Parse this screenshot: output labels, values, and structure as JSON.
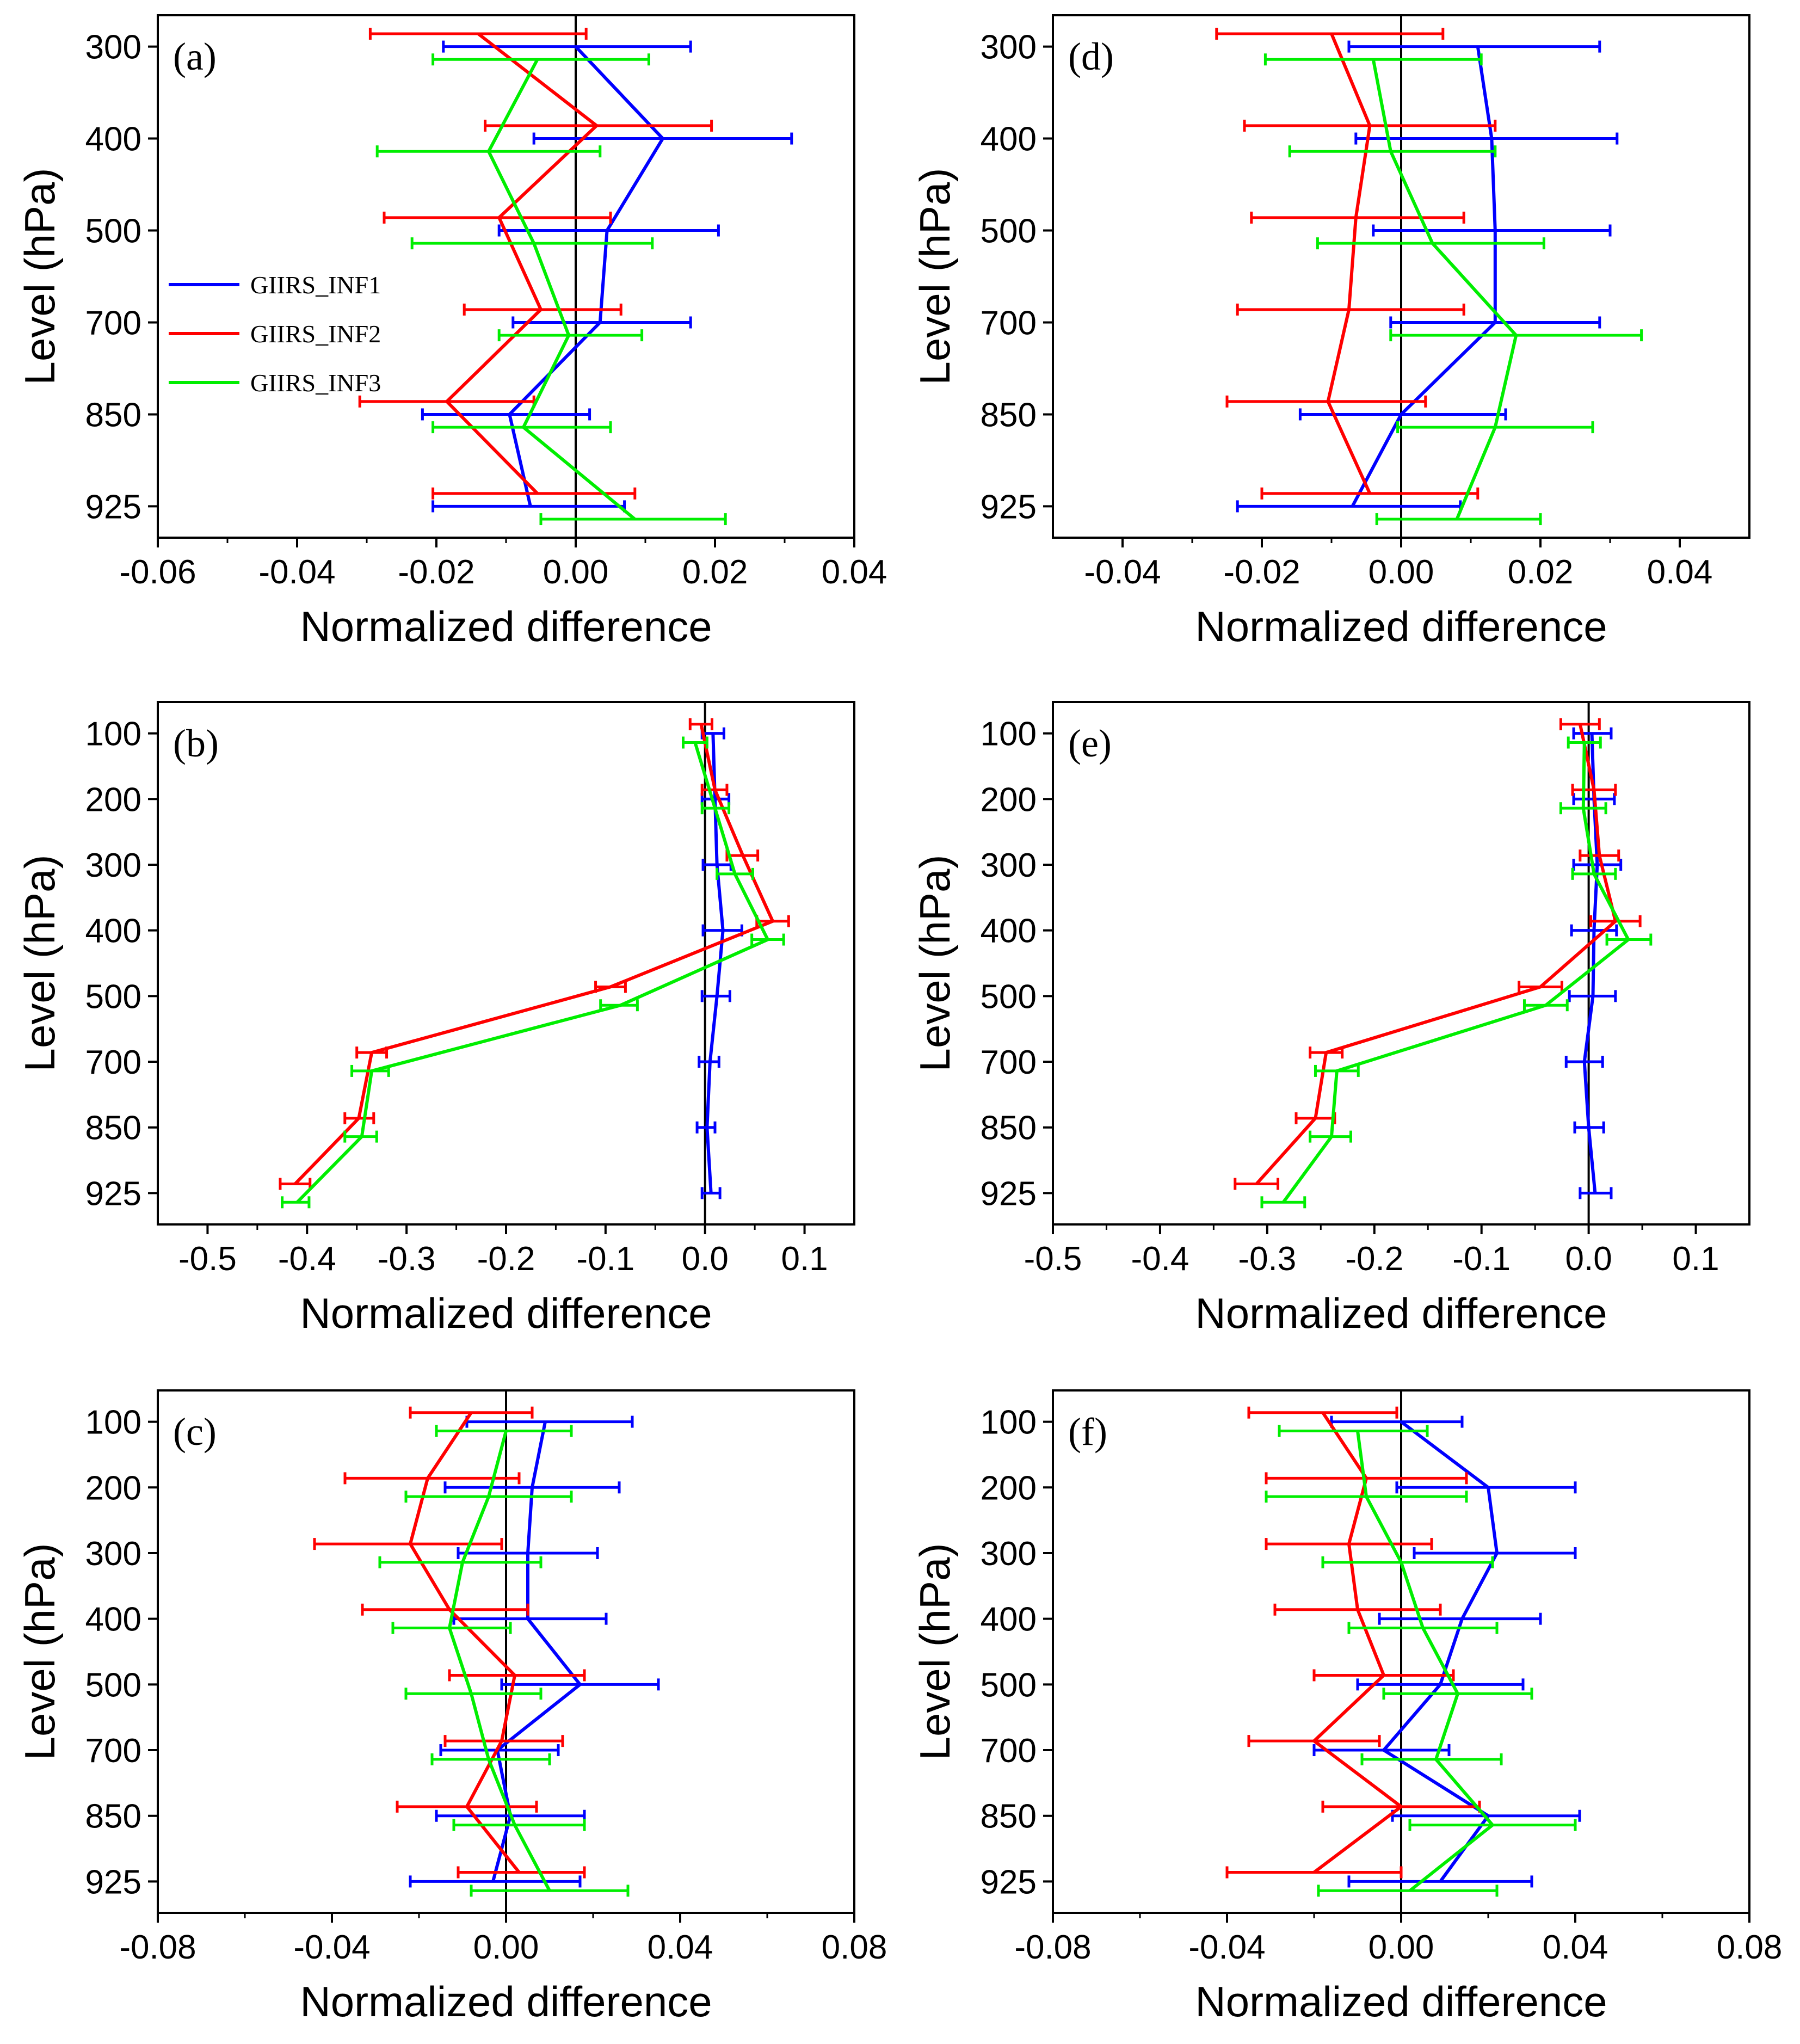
{
  "figure": {
    "xlabel": "Normalized difference",
    "ylabel": "Level (hPa)"
  },
  "colors": {
    "GIIRS_INF1": "#0000ff",
    "GIIRS_INF2": "#ff0000",
    "GIIRS_INF3": "#00ee00",
    "axis": "#000000",
    "zero_line": "#000000"
  },
  "legend": {
    "entries": [
      "GIIRS_INF1",
      "GIIRS_INF2",
      "GIIRS_INF3"
    ]
  },
  "chart_data": [
    {
      "id": "a",
      "panel_label": "(a)",
      "type": "line",
      "xlabel": "Normalized difference",
      "ylabel": "Level (hPa)",
      "xlim": [
        -0.06,
        0.04
      ],
      "xticks": [
        -0.06,
        -0.04,
        -0.02,
        0.0,
        0.02,
        0.04
      ],
      "xtick_labels": [
        "-0.06",
        "-0.04",
        "-0.02",
        "0.00",
        "0.02",
        "0.04"
      ],
      "levels": [
        300,
        400,
        500,
        700,
        850,
        925
      ],
      "level_labels": [
        "300",
        "400",
        "500",
        "700",
        "850",
        "925"
      ],
      "legend": true,
      "series": [
        {
          "name": "GIIRS_INF1",
          "values": [
            0.0,
            0.0125,
            0.0045,
            0.0035,
            -0.0095,
            -0.0065
          ],
          "err_low": [
            -0.019,
            -0.006,
            -0.011,
            -0.009,
            -0.022,
            -0.0205
          ],
          "err_high": [
            0.0165,
            0.031,
            0.0205,
            0.0165,
            0.002,
            0.007
          ]
        },
        {
          "name": "GIIRS_INF2",
          "values": [
            -0.014,
            0.003,
            -0.011,
            -0.005,
            -0.0185,
            -0.0055
          ],
          "err_low": [
            -0.0295,
            -0.013,
            -0.0275,
            -0.016,
            -0.031,
            -0.0205
          ],
          "err_high": [
            0.0015,
            0.0195,
            0.005,
            0.0065,
            -0.006,
            0.0085
          ]
        },
        {
          "name": "GIIRS_INF3",
          "values": [
            -0.0055,
            -0.0125,
            -0.006,
            -0.001,
            -0.0075,
            0.0085
          ],
          "err_low": [
            -0.0205,
            -0.0285,
            -0.0235,
            -0.011,
            -0.0205,
            -0.005
          ],
          "err_high": [
            0.0105,
            0.0035,
            0.011,
            0.0095,
            0.005,
            0.0215
          ]
        }
      ]
    },
    {
      "id": "b",
      "panel_label": "(b)",
      "type": "line",
      "xlabel": "Normalized difference",
      "ylabel": "Level (hPa)",
      "xlim": [
        -0.55,
        0.15
      ],
      "xticks": [
        -0.5,
        -0.4,
        -0.3,
        -0.2,
        -0.1,
        0.0,
        0.1
      ],
      "xtick_labels": [
        "-0.5",
        "-0.4",
        "-0.3",
        "-0.2",
        "-0.1",
        "0.0",
        "0.1"
      ],
      "levels": [
        100,
        200,
        300,
        400,
        500,
        700,
        850,
        925
      ],
      "level_labels": [
        "100",
        "200",
        "300",
        "400",
        "500",
        "700",
        "850",
        "925"
      ],
      "legend": false,
      "series": [
        {
          "name": "GIIRS_INF1",
          "values": [
            0.008,
            0.01,
            0.012,
            0.018,
            0.012,
            0.005,
            0.002,
            0.006
          ],
          "err_low": [
            -0.003,
            -0.003,
            -0.002,
            -0.002,
            -0.003,
            -0.006,
            -0.008,
            -0.003
          ],
          "err_high": [
            0.019,
            0.024,
            0.026,
            0.037,
            0.025,
            0.014,
            0.01,
            0.015
          ]
        },
        {
          "name": "GIIRS_INF2",
          "values": [
            -0.004,
            0.01,
            0.038,
            0.068,
            -0.095,
            -0.335,
            -0.348,
            -0.412
          ],
          "err_low": [
            -0.015,
            -0.003,
            0.022,
            0.052,
            -0.11,
            -0.35,
            -0.362,
            -0.427
          ],
          "err_high": [
            0.007,
            0.022,
            0.053,
            0.084,
            -0.08,
            -0.32,
            -0.333,
            -0.397
          ]
        },
        {
          "name": "GIIRS_INF3",
          "values": [
            -0.01,
            0.01,
            0.03,
            0.063,
            -0.085,
            -0.335,
            -0.345,
            -0.41
          ],
          "err_low": [
            -0.022,
            -0.003,
            0.012,
            0.047,
            -0.105,
            -0.355,
            -0.362,
            -0.425
          ],
          "err_high": [
            0.002,
            0.024,
            0.048,
            0.079,
            -0.068,
            -0.318,
            -0.33,
            -0.398
          ]
        }
      ]
    },
    {
      "id": "c",
      "panel_label": "(c)",
      "type": "line",
      "xlabel": "Normalized difference",
      "ylabel": "Level (hPa)",
      "xlim": [
        -0.08,
        0.08
      ],
      "xticks": [
        -0.08,
        -0.04,
        0.0,
        0.04,
        0.08
      ],
      "xtick_labels": [
        "-0.08",
        "-0.04",
        "0.00",
        "0.04",
        "0.08"
      ],
      "levels": [
        100,
        200,
        300,
        400,
        500,
        700,
        850,
        925
      ],
      "level_labels": [
        "100",
        "200",
        "300",
        "400",
        "500",
        "700",
        "850",
        "925"
      ],
      "legend": false,
      "series": [
        {
          "name": "GIIRS_INF1",
          "values": [
            0.009,
            0.006,
            0.005,
            0.005,
            0.017,
            -0.002,
            0.001,
            -0.003
          ],
          "err_low": [
            -0.009,
            -0.014,
            -0.011,
            -0.012,
            -0.001,
            -0.015,
            -0.016,
            -0.022
          ],
          "err_high": [
            0.029,
            0.026,
            0.021,
            0.023,
            0.035,
            0.012,
            0.018,
            0.017
          ]
        },
        {
          "name": "GIIRS_INF2",
          "values": [
            -0.008,
            -0.018,
            -0.022,
            -0.013,
            0.002,
            -0.001,
            -0.009,
            0.003
          ],
          "err_low": [
            -0.022,
            -0.037,
            -0.044,
            -0.033,
            -0.013,
            -0.014,
            -0.025,
            -0.011
          ],
          "err_high": [
            0.006,
            0.003,
            -0.001,
            0.005,
            0.018,
            0.013,
            0.007,
            0.018
          ]
        },
        {
          "name": "GIIRS_INF3",
          "values": [
            0.0,
            -0.004,
            -0.01,
            -0.013,
            -0.008,
            -0.004,
            0.002,
            0.01
          ],
          "err_low": [
            -0.016,
            -0.023,
            -0.029,
            -0.026,
            -0.023,
            -0.017,
            -0.012,
            -0.008
          ],
          "err_high": [
            0.015,
            0.015,
            0.008,
            0.001,
            0.008,
            0.01,
            0.018,
            0.028
          ]
        }
      ]
    },
    {
      "id": "d",
      "panel_label": "(d)",
      "type": "line",
      "xlabel": "Normalized difference",
      "ylabel": "Level (hPa)",
      "xlim": [
        -0.05,
        0.05
      ],
      "xticks": [
        -0.04,
        -0.02,
        0.0,
        0.02,
        0.04
      ],
      "xtick_labels": [
        "-0.04",
        "-0.02",
        "0.00",
        "0.02",
        "0.04"
      ],
      "levels": [
        300,
        400,
        500,
        700,
        850,
        925
      ],
      "level_labels": [
        "300",
        "400",
        "500",
        "700",
        "850",
        "925"
      ],
      "legend": false,
      "series": [
        {
          "name": "GIIRS_INF1",
          "values": [
            0.011,
            0.013,
            0.0135,
            0.0135,
            0.0,
            -0.007
          ],
          "err_low": [
            -0.0075,
            -0.0065,
            -0.004,
            -0.0015,
            -0.0145,
            -0.0235
          ],
          "err_high": [
            0.0285,
            0.031,
            0.03,
            0.0285,
            0.015,
            0.0085
          ]
        },
        {
          "name": "GIIRS_INF2",
          "values": [
            -0.01,
            -0.0045,
            -0.0065,
            -0.0075,
            -0.0105,
            -0.0045
          ],
          "err_low": [
            -0.0265,
            -0.0225,
            -0.0215,
            -0.0235,
            -0.025,
            -0.02
          ],
          "err_high": [
            0.006,
            0.0135,
            0.009,
            0.009,
            0.0035,
            0.011
          ]
        },
        {
          "name": "GIIRS_INF3",
          "values": [
            -0.004,
            -0.0015,
            0.0045,
            0.0165,
            0.0135,
            0.008
          ],
          "err_low": [
            -0.0195,
            -0.016,
            -0.012,
            -0.0015,
            -0.0005,
            -0.0035
          ],
          "err_high": [
            0.0115,
            0.0135,
            0.0205,
            0.0345,
            0.0275,
            0.02
          ]
        }
      ]
    },
    {
      "id": "e",
      "panel_label": "(e)",
      "type": "line",
      "xlabel": "Normalized difference",
      "ylabel": "Level (hPa)",
      "xlim": [
        -0.5,
        0.15
      ],
      "xticks": [
        -0.5,
        -0.4,
        -0.3,
        -0.2,
        -0.1,
        0.0,
        0.1
      ],
      "xtick_labels": [
        "-0.5",
        "-0.4",
        "-0.3",
        "-0.2",
        "-0.1",
        "0.0",
        "0.1"
      ],
      "levels": [
        100,
        200,
        300,
        400,
        500,
        700,
        850,
        925
      ],
      "level_labels": [
        "100",
        "200",
        "300",
        "400",
        "500",
        "700",
        "850",
        "925"
      ],
      "legend": false,
      "series": [
        {
          "name": "GIIRS_INF1",
          "values": [
            0.003,
            0.005,
            0.008,
            0.005,
            0.004,
            -0.004,
            0.0,
            0.006
          ],
          "err_low": [
            -0.014,
            -0.014,
            -0.014,
            -0.016,
            -0.018,
            -0.021,
            -0.013,
            -0.008
          ],
          "err_high": [
            0.021,
            0.024,
            0.03,
            0.026,
            0.025,
            0.013,
            0.014,
            0.021
          ]
        },
        {
          "name": "GIIRS_INF2",
          "values": [
            -0.008,
            0.005,
            0.01,
            0.025,
            -0.045,
            -0.245,
            -0.255,
            -0.31
          ],
          "err_low": [
            -0.026,
            -0.015,
            -0.008,
            0.002,
            -0.065,
            -0.26,
            -0.273,
            -0.33
          ],
          "err_high": [
            0.01,
            0.025,
            0.028,
            0.048,
            -0.025,
            -0.23,
            -0.237,
            -0.29
          ]
        },
        {
          "name": "GIIRS_INF3",
          "values": [
            -0.004,
            -0.005,
            0.005,
            0.037,
            -0.04,
            -0.235,
            -0.24,
            -0.285
          ],
          "err_low": [
            -0.019,
            -0.026,
            -0.015,
            0.017,
            -0.06,
            -0.255,
            -0.26,
            -0.305
          ],
          "err_high": [
            0.011,
            0.016,
            0.025,
            0.058,
            -0.02,
            -0.215,
            -0.222,
            -0.265
          ]
        }
      ]
    },
    {
      "id": "f",
      "panel_label": "(f)",
      "type": "line",
      "xlabel": "Normalized difference",
      "ylabel": "Level (hPa)",
      "xlim": [
        -0.08,
        0.08
      ],
      "xticks": [
        -0.08,
        -0.04,
        0.0,
        0.04,
        0.08
      ],
      "xtick_labels": [
        "-0.08",
        "-0.04",
        "0.00",
        "0.04",
        "0.08"
      ],
      "levels": [
        100,
        200,
        300,
        400,
        500,
        700,
        850,
        925
      ],
      "level_labels": [
        "100",
        "200",
        "300",
        "400",
        "500",
        "700",
        "850",
        "925"
      ],
      "legend": false,
      "series": [
        {
          "name": "GIIRS_INF1",
          "values": [
            0.0,
            0.02,
            0.022,
            0.014,
            0.009,
            -0.004,
            0.02,
            0.009
          ],
          "err_low": [
            -0.016,
            -0.001,
            0.003,
            -0.005,
            -0.01,
            -0.02,
            -0.002,
            -0.012
          ],
          "err_high": [
            0.014,
            0.04,
            0.04,
            0.032,
            0.028,
            0.011,
            0.041,
            0.03
          ]
        },
        {
          "name": "GIIRS_INF2",
          "values": [
            -0.018,
            -0.008,
            -0.012,
            -0.01,
            -0.004,
            -0.02,
            0.0,
            -0.02
          ],
          "err_low": [
            -0.035,
            -0.031,
            -0.031,
            -0.029,
            -0.02,
            -0.035,
            -0.018,
            -0.04
          ],
          "err_high": [
            -0.001,
            0.015,
            0.007,
            0.009,
            0.012,
            -0.005,
            0.018,
            0.0
          ]
        },
        {
          "name": "GIIRS_INF3",
          "values": [
            -0.01,
            -0.008,
            0.0,
            0.005,
            0.013,
            0.008,
            0.021,
            0.002
          ],
          "err_low": [
            -0.028,
            -0.031,
            -0.018,
            -0.012,
            -0.004,
            -0.009,
            0.002,
            -0.019
          ],
          "err_high": [
            0.006,
            0.015,
            0.021,
            0.022,
            0.03,
            0.023,
            0.04,
            0.022
          ]
        }
      ]
    }
  ]
}
